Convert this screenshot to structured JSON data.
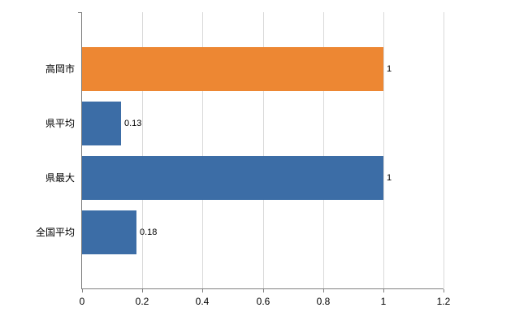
{
  "chart_data": {
    "type": "bar",
    "orientation": "horizontal",
    "title": "",
    "xlabel": "",
    "ylabel": "",
    "categories": [
      "高岡市",
      "県平均",
      "県最大",
      "全国平均"
    ],
    "values": [
      1,
      0.13,
      1,
      0.18
    ],
    "value_labels": [
      "1",
      "0.13",
      "1",
      "0.18"
    ],
    "bar_colors": [
      "#ed8733",
      "#3c6da6",
      "#3c6da6",
      "#3c6da6"
    ],
    "xlim": [
      0,
      1.2
    ],
    "x_ticks": [
      0,
      0.2,
      0.4,
      0.6,
      0.8,
      1,
      1.2
    ],
    "x_tick_labels": [
      "0",
      "0.2",
      "0.4",
      "0.6",
      "0.8",
      "1",
      "1.2"
    ],
    "grid": true,
    "legend": false
  },
  "colors": {
    "highlight_bar": "#ed8733",
    "default_bar": "#3c6da6",
    "gridline": "#d9d9d9",
    "axis": "#808080",
    "background": "#ffffff",
    "label_text": "#000000"
  }
}
